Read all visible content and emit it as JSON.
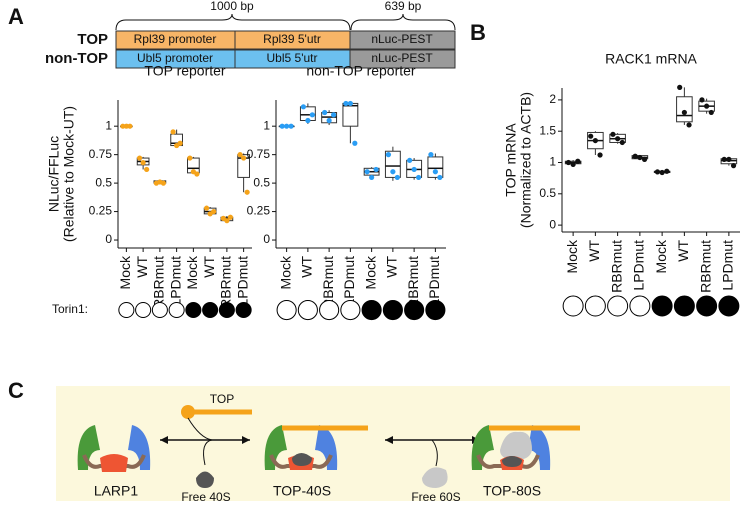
{
  "panels": {
    "a": "A",
    "b": "B",
    "c": "C"
  },
  "constructs": {
    "top_label": "TOP",
    "nontop_label": "non-TOP",
    "top_promoter": "Rpl39 promoter",
    "top_utr": "Rpl39 5'utr",
    "nontop_promoter": "Ubl5 promoter",
    "nontop_utr": "Ubl5 5'utr",
    "nluc": "nLuc-PEST",
    "len1": "1000 bp",
    "len2": "639 bp"
  },
  "torin_label": "Torin1:",
  "chart_data": [
    {
      "type": "box",
      "title": "TOP reporter",
      "ylabel": [
        "NLuc/FFLuc",
        "(Relative to Mock-UT)"
      ],
      "color": "#f5a31a",
      "ylim": [
        -0.07,
        1.23
      ],
      "yticks": [
        0,
        0.25,
        0.5,
        0.75,
        1
      ],
      "categories": [
        "Mock",
        "WT",
        "RBRmut",
        "LPDmut",
        "Mock",
        "WT",
        "RBRmut",
        "LPDmut"
      ],
      "torin": [
        false,
        false,
        false,
        false,
        true,
        true,
        true,
        true
      ],
      "boxes": [
        {
          "whisker_low": 1,
          "q1": 1,
          "median": 1,
          "q3": 1,
          "whisker_high": 1,
          "points": [
            1,
            1,
            1
          ]
        },
        {
          "whisker_low": 0.62,
          "q1": 0.66,
          "median": 0.69,
          "q3": 0.72,
          "whisker_high": 0.73,
          "points": [
            0.72,
            0.68,
            0.62
          ]
        },
        {
          "whisker_low": 0.5,
          "q1": 0.5,
          "median": 0.51,
          "q3": 0.52,
          "whisker_high": 0.52,
          "points": [
            0.5,
            0.51,
            0.5
          ]
        },
        {
          "whisker_low": 0.82,
          "q1": 0.83,
          "median": 0.85,
          "q3": 0.93,
          "whisker_high": 0.97,
          "points": [
            0.95,
            0.83,
            0.85
          ]
        },
        {
          "whisker_low": 0.58,
          "q1": 0.59,
          "median": 0.63,
          "q3": 0.72,
          "whisker_high": 0.73,
          "points": [
            0.72,
            0.6,
            0.58
          ]
        },
        {
          "whisker_low": 0.22,
          "q1": 0.23,
          "median": 0.25,
          "q3": 0.28,
          "whisker_high": 0.29,
          "points": [
            0.28,
            0.23,
            0.25
          ]
        },
        {
          "whisker_low": 0.16,
          "q1": 0.17,
          "median": 0.19,
          "q3": 0.2,
          "whisker_high": 0.21,
          "points": [
            0.19,
            0.17,
            0.2
          ]
        },
        {
          "whisker_low": 0.42,
          "q1": 0.55,
          "median": 0.72,
          "q3": 0.75,
          "whisker_high": 0.76,
          "points": [
            0.75,
            0.72,
            0.42
          ]
        }
      ]
    },
    {
      "type": "box",
      "title": "non-TOP reporter",
      "color": "#2a9df4",
      "ylim": [
        -0.07,
        1.23
      ],
      "yticks": [
        0,
        0.25,
        0.5,
        0.75,
        1
      ],
      "categories": [
        "Mock",
        "WT",
        "RBRmut",
        "LPDmut",
        "Mock",
        "WT",
        "RBRmut",
        "LPDmut"
      ],
      "torin": [
        false,
        false,
        false,
        false,
        true,
        true,
        true,
        true
      ],
      "boxes": [
        {
          "whisker_low": 1,
          "q1": 1,
          "median": 1,
          "q3": 1,
          "whisker_high": 1,
          "points": [
            1,
            1,
            1
          ]
        },
        {
          "whisker_low": 1.02,
          "q1": 1.05,
          "median": 1.1,
          "q3": 1.17,
          "whisker_high": 1.2,
          "points": [
            1.17,
            1.05,
            1.1
          ]
        },
        {
          "whisker_low": 1.01,
          "q1": 1.03,
          "median": 1.08,
          "q3": 1.12,
          "whisker_high": 1.14,
          "points": [
            1.12,
            1.05,
            1.1
          ]
        },
        {
          "whisker_low": 0.85,
          "q1": 1.0,
          "median": 1.18,
          "q3": 1.2,
          "whisker_high": 1.21,
          "points": [
            1.2,
            1.2,
            0.85
          ]
        },
        {
          "whisker_low": 0.55,
          "q1": 0.57,
          "median": 0.6,
          "q3": 0.63,
          "whisker_high": 0.64,
          "points": [
            0.6,
            0.55,
            0.62
          ]
        },
        {
          "whisker_low": 0.52,
          "q1": 0.55,
          "median": 0.65,
          "q3": 0.78,
          "whisker_high": 0.82,
          "points": [
            0.75,
            0.6,
            0.55
          ]
        },
        {
          "whisker_low": 0.53,
          "q1": 0.55,
          "median": 0.62,
          "q3": 0.7,
          "whisker_high": 0.72,
          "points": [
            0.7,
            0.62,
            0.55
          ]
        },
        {
          "whisker_low": 0.53,
          "q1": 0.55,
          "median": 0.63,
          "q3": 0.73,
          "whisker_high": 0.76,
          "points": [
            0.75,
            0.6,
            0.55
          ]
        }
      ]
    },
    {
      "type": "box",
      "title": "RACK1 mRNA",
      "ylabel": [
        "TOP mRNA",
        "(Normalized to ACTB)"
      ],
      "color": "#111111",
      "ylim": [
        -0.11,
        2.19
      ],
      "yticks": [
        0,
        0.5,
        1,
        1.5,
        2
      ],
      "categories": [
        "Mock",
        "WT",
        "RBRmut",
        "LPDmut",
        "Mock",
        "WT",
        "RBRmut",
        "LPDmut"
      ],
      "torin": [
        false,
        false,
        false,
        false,
        true,
        true,
        true,
        true
      ],
      "boxes": [
        {
          "whisker_low": 0.96,
          "q1": 0.98,
          "median": 1,
          "q3": 1.02,
          "whisker_high": 1.04,
          "points": [
            1,
            0.97,
            1.02
          ]
        },
        {
          "whisker_low": 1.12,
          "q1": 1.22,
          "median": 1.35,
          "q3": 1.48,
          "whisker_high": 1.5,
          "points": [
            1.42,
            1.35,
            1.12
          ]
        },
        {
          "whisker_low": 1.3,
          "q1": 1.32,
          "median": 1.38,
          "q3": 1.45,
          "whisker_high": 1.47,
          "points": [
            1.45,
            1.38,
            1.32
          ]
        },
        {
          "whisker_low": 1.04,
          "q1": 1.06,
          "median": 1.08,
          "q3": 1.11,
          "whisker_high": 1.12,
          "points": [
            1.1,
            1.08,
            1.05
          ]
        },
        {
          "whisker_low": 0.83,
          "q1": 0.84,
          "median": 0.85,
          "q3": 0.86,
          "whisker_high": 0.87,
          "points": [
            0.85,
            0.84,
            0.86
          ]
        },
        {
          "whisker_low": 1.6,
          "q1": 1.65,
          "median": 1.75,
          "q3": 2.05,
          "whisker_high": 2.2,
          "points": [
            2.2,
            1.8,
            1.6
          ]
        },
        {
          "whisker_low": 1.78,
          "q1": 1.82,
          "median": 1.9,
          "q3": 1.98,
          "whisker_high": 2.02,
          "points": [
            2.0,
            1.9,
            1.8
          ]
        },
        {
          "whisker_low": 0.95,
          "q1": 0.98,
          "median": 1.03,
          "q3": 1.06,
          "whisker_high": 1.07,
          "points": [
            1.05,
            1.05,
            0.95
          ]
        }
      ]
    }
  ],
  "diagram": {
    "larp1": "LARP1",
    "top": "TOP",
    "free40s": "Free 40S",
    "top40s": "TOP-40S",
    "free60s": "Free 60S",
    "top80s": "TOP-80S"
  }
}
